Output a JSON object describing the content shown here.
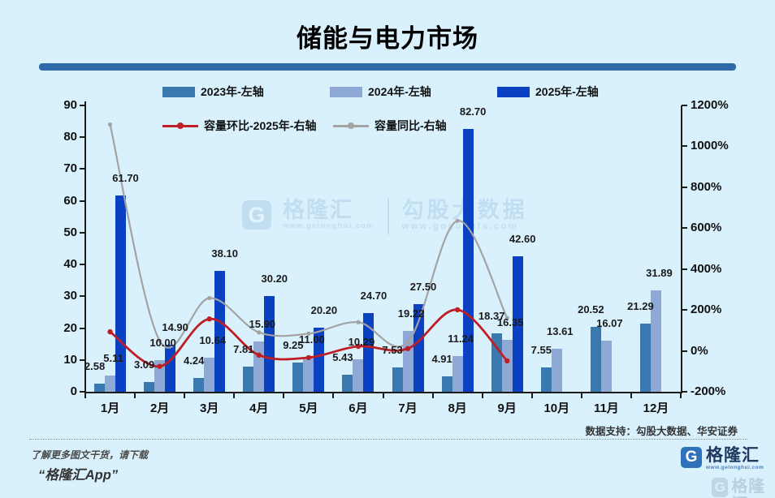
{
  "title": "储能与电力市场",
  "chart_data": {
    "type": "bar+line combo",
    "title": "储能与电力市场",
    "categories": [
      "1月",
      "2月",
      "3月",
      "4月",
      "5月",
      "6月",
      "7月",
      "8月",
      "9月",
      "10月",
      "11月",
      "12月"
    ],
    "bar_series": [
      {
        "name": "2023年-左轴",
        "axis": "left",
        "values": [
          2.58,
          3.09,
          4.24,
          7.81,
          9.25,
          5.43,
          7.53,
          4.91,
          18.37,
          7.55,
          20.52,
          21.29
        ]
      },
      {
        "name": "2024年-左轴",
        "axis": "left",
        "values": [
          5.11,
          10.0,
          10.64,
          15.9,
          11.0,
          10.29,
          19.22,
          11.24,
          16.35,
          13.61,
          16.07,
          31.89
        ]
      },
      {
        "name": "2025年-左轴",
        "axis": "left",
        "values": [
          61.7,
          14.9,
          38.1,
          30.2,
          20.2,
          24.7,
          27.5,
          82.7,
          42.6,
          null,
          null,
          null
        ]
      }
    ],
    "line_series": [
      {
        "name": "容量环比-2025年-右轴",
        "axis": "right",
        "unit": "%",
        "values": [
          93,
          -76,
          156,
          -21,
          -33,
          22,
          11,
          201,
          -49,
          null,
          null,
          null
        ]
      },
      {
        "name": "容量同比-右轴",
        "axis": "right",
        "unit": "%",
        "values": [
          1107,
          49,
          258,
          90,
          84,
          140,
          43,
          636,
          161,
          null,
          null,
          null
        ]
      }
    ],
    "left_axis": {
      "min": 0,
      "max": 90,
      "ticks": [
        0,
        10,
        20,
        30,
        40,
        50,
        60,
        70,
        80,
        90
      ]
    },
    "right_axis": {
      "min": -200,
      "max": 1200,
      "suffix": "%",
      "ticks": [
        -200,
        0,
        200,
        400,
        600,
        800,
        1000,
        1200
      ]
    },
    "grid": "off",
    "legend_position": "top"
  },
  "watermark": {
    "logo_letter": "G",
    "glh_name": "格隆汇",
    "glh_url": "www.gelonghui.com",
    "gogu_name": "勾股大数据",
    "gogu_url": "www.gogudata.com"
  },
  "footer": {
    "source": "数据支持：勾股大数据、华安证券",
    "promo_line1": "了解更多图文干货，请下载",
    "promo_line2": "“格隆汇App”",
    "logo_letter": "G",
    "logo_text": "格隆汇",
    "logo_url": "www.gelonghui.com"
  },
  "colors": {
    "background": "#d9f1fd",
    "divider": "#2e6ba6",
    "bar_2023": "#3a78b0",
    "bar_2024": "#8ea9d6",
    "bar_2025": "#0a41c2",
    "line_mom": "#bf1e24",
    "line_yoy": "#a3a3a3",
    "logo_blue": "#2f72bb",
    "watermark_blue": "#aecfe8"
  }
}
